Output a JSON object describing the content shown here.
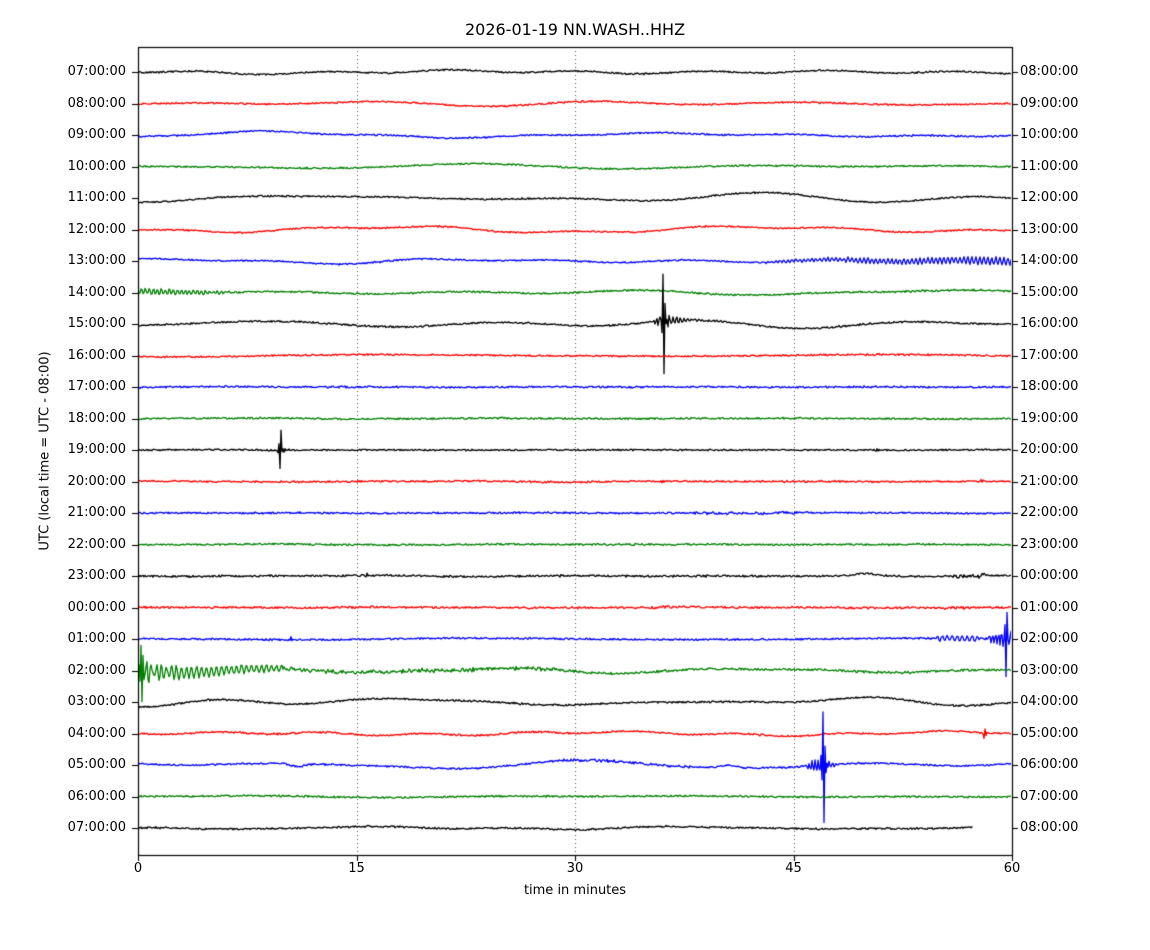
{
  "title": "2026-01-19 NN.WASH..HHZ",
  "y_axis": {
    "label": "UTC (local time = UTC - 08:00)"
  },
  "x_axis": {
    "label": "time in minutes",
    "ticks": [
      "0",
      "15",
      "30",
      "45",
      "60"
    ],
    "tick_values": [
      0,
      15,
      30,
      45,
      60
    ],
    "range": [
      0,
      60
    ],
    "gridlines": [
      15,
      30,
      45
    ]
  },
  "palette": {
    "black": "#000000",
    "red": "#ff0000",
    "blue": "#0000ff",
    "green": "#008000",
    "axis": "#000000",
    "grid": "#555555"
  },
  "chart_data": {
    "type": "line",
    "subtype": "helicorder-dayplot",
    "title": "2026-01-19 NN.WASH..HHZ",
    "minutes_per_row": 60,
    "x_range_minutes": [
      0,
      60
    ],
    "note_amplitude_units": "pixels at rendered scale, estimated from figure",
    "rows": [
      {
        "start": "07:00:00",
        "end": "08:00:00",
        "color": "black",
        "wander": 2.2,
        "noise": 0.7,
        "events": []
      },
      {
        "start": "08:00:00",
        "end": "09:00:00",
        "color": "red",
        "wander": 2.2,
        "noise": 0.7,
        "events": []
      },
      {
        "start": "09:00:00",
        "end": "10:00:00",
        "color": "blue",
        "wander": 2.2,
        "noise": 0.7,
        "events": []
      },
      {
        "start": "10:00:00",
        "end": "11:00:00",
        "color": "green",
        "wander": 2.2,
        "noise": 0.7,
        "events": []
      },
      {
        "start": "11:00:00",
        "end": "12:00:00",
        "color": "black",
        "wander": 3.2,
        "noise": 0.7,
        "events": []
      },
      {
        "start": "12:00:00",
        "end": "13:00:00",
        "color": "red",
        "wander": 3.2,
        "noise": 0.7,
        "events": []
      },
      {
        "start": "13:00:00",
        "end": "14:00:00",
        "color": "blue",
        "wander": 2.2,
        "noise": 0.7,
        "events": [
          {
            "type": "burst",
            "t0": 43,
            "t1": 60,
            "a0": 1,
            "a1": 4.5,
            "period": 4
          }
        ]
      },
      {
        "start": "14:00:00",
        "end": "15:00:00",
        "color": "green",
        "wander": 2.4,
        "noise": 0.8,
        "events": [
          {
            "type": "burst",
            "t0": 0,
            "t1": 6.5,
            "a0": 3.5,
            "a1": 1.2,
            "period": 4
          }
        ]
      },
      {
        "start": "15:00:00",
        "end": "16:00:00",
        "color": "black",
        "wander": 2.8,
        "noise": 0.8,
        "events": [
          {
            "type": "burst",
            "t0": 35.4,
            "t1": 36,
            "a0": 2,
            "a1": 8,
            "period": 3
          },
          {
            "type": "quake",
            "t": 36,
            "spike": 52,
            "coda": 8,
            "tau": 1.1
          }
        ]
      },
      {
        "start": "16:00:00",
        "end": "17:00:00",
        "color": "red",
        "wander": 2.6,
        "noise": 0.8,
        "events": []
      },
      {
        "start": "17:00:00",
        "end": "18:00:00",
        "color": "blue",
        "wander": 0.5,
        "noise": 0.8,
        "events": []
      },
      {
        "start": "18:00:00",
        "end": "19:00:00",
        "color": "green",
        "wander": 0.4,
        "noise": 0.8,
        "events": []
      },
      {
        "start": "19:00:00",
        "end": "20:00:00",
        "color": "black",
        "wander": 0.5,
        "noise": 0.7,
        "events": [
          {
            "type": "quake",
            "t": 9.7,
            "spike": 16,
            "coda": 3,
            "tau": 0.45
          },
          {
            "type": "spike",
            "t": 50.7,
            "a": 2
          }
        ]
      },
      {
        "start": "20:00:00",
        "end": "21:00:00",
        "color": "red",
        "wander": 0.4,
        "noise": 0.8,
        "events": [
          {
            "type": "spike",
            "t": 36,
            "a": 2
          },
          {
            "type": "spike",
            "t": 57.9,
            "a": 2.5
          }
        ]
      },
      {
        "start": "21:00:00",
        "end": "22:00:00",
        "color": "blue",
        "wander": 0.5,
        "noise": 0.8,
        "events": [
          {
            "type": "fuzz",
            "t0": 38,
            "t1": 46,
            "a": 1
          }
        ]
      },
      {
        "start": "22:00:00",
        "end": "23:00:00",
        "color": "green",
        "wander": 0.4,
        "noise": 0.8,
        "events": []
      },
      {
        "start": "23:00:00",
        "end": "00:00:00",
        "color": "black",
        "wander": 0.5,
        "noise": 0.9,
        "events": [
          {
            "type": "spike",
            "t": 9,
            "a": 2
          },
          {
            "type": "spike",
            "t": 15.7,
            "a": 3
          },
          {
            "type": "spike",
            "t": 29,
            "a": 2
          },
          {
            "type": "spike",
            "t": 33.5,
            "a": 2
          },
          {
            "type": "spike",
            "t": 39,
            "a": 2
          },
          {
            "type": "bump",
            "t": 50,
            "a": 2.5,
            "sigma": 0.7
          },
          {
            "type": "fuzz",
            "t0": 56,
            "t1": 58.5,
            "a": 1.5
          }
        ]
      },
      {
        "start": "00:00:00",
        "end": "01:00:00",
        "color": "red",
        "wander": 0.4,
        "noise": 0.9,
        "events": [
          {
            "type": "fuzz",
            "t0": 35,
            "t1": 37,
            "a": 1
          },
          {
            "type": "fuzz",
            "t0": 55,
            "t1": 57,
            "a": 1
          }
        ]
      },
      {
        "start": "01:00:00",
        "end": "02:00:00",
        "color": "blue",
        "wander": 0.5,
        "noise": 0.8,
        "events": [
          {
            "type": "spike",
            "t": 10.5,
            "a": 2.5
          },
          {
            "type": "spike",
            "t": 46.3,
            "a": 2
          },
          {
            "type": "burst",
            "t0": 54.8,
            "t1": 57.8,
            "a0": 2.5,
            "a1": 3,
            "period": 5
          },
          {
            "type": "burst",
            "t0": 58.4,
            "t1": 60,
            "a0": 4,
            "a1": 12,
            "period": 3
          },
          {
            "type": "quake",
            "t": 59.55,
            "spike": 25,
            "coda": 6,
            "tau": 0.12
          }
        ]
      },
      {
        "start": "02:00:00",
        "end": "03:00:00",
        "color": "green",
        "wander": 2.0,
        "noise": 1.0,
        "events": [
          {
            "type": "quake",
            "t": 0.15,
            "spike": 32,
            "coda": 16,
            "tau": 0.9
          },
          {
            "type": "burst",
            "t0": 0.6,
            "t1": 10,
            "a0": 8,
            "a1": 3,
            "period": 5
          },
          {
            "type": "fuzz",
            "t0": 10,
            "t1": 30,
            "a": 1.5
          }
        ]
      },
      {
        "start": "03:00:00",
        "end": "04:00:00",
        "color": "black",
        "wander": 3.0,
        "noise": 0.8,
        "events": []
      },
      {
        "start": "04:00:00",
        "end": "05:00:00",
        "color": "red",
        "wander": 2.4,
        "noise": 0.8,
        "events": [
          {
            "type": "spike",
            "t": 58.1,
            "a": 8
          }
        ]
      },
      {
        "start": "05:00:00",
        "end": "06:00:00",
        "color": "blue",
        "wander": 2.4,
        "noise": 0.8,
        "events": [
          {
            "type": "bump",
            "t": 11,
            "a": -3,
            "sigma": 0.4
          },
          {
            "type": "fuzz",
            "t0": 29,
            "t1": 38,
            "a": 1
          },
          {
            "type": "bump",
            "t": 40.5,
            "a": 2.5,
            "sigma": 0.5
          },
          {
            "type": "burst",
            "t0": 45.8,
            "t1": 47,
            "a0": 2,
            "a1": 10,
            "period": 3
          },
          {
            "type": "quake",
            "t": 47,
            "spike": 48,
            "coda": 7,
            "tau": 0.6
          }
        ]
      },
      {
        "start": "06:00:00",
        "end": "07:00:00",
        "color": "green",
        "wander": 2.0,
        "noise": 0.8,
        "events": []
      },
      {
        "start": "07:00:00",
        "end": "08:00:00",
        "color": "black",
        "wander": 1.2,
        "noise": 0.8,
        "events": [],
        "end_minute": 57.3
      }
    ]
  }
}
